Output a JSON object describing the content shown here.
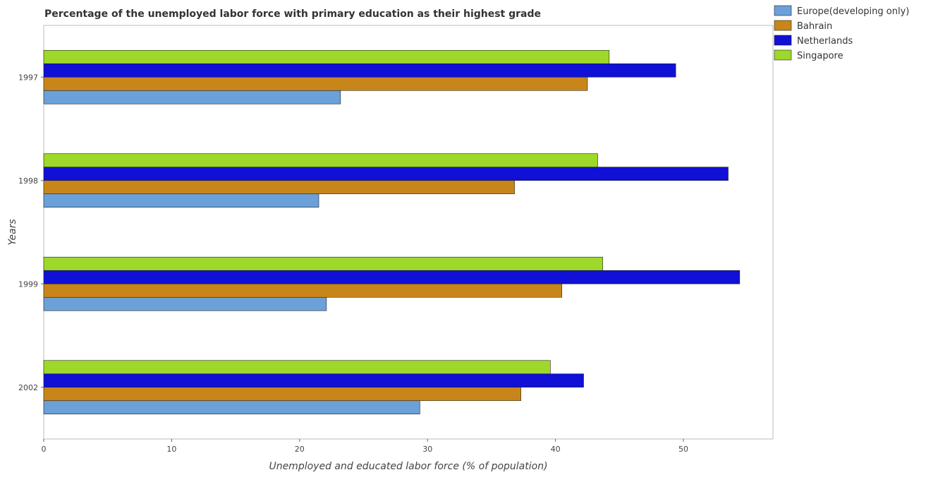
{
  "chart_data": {
    "type": "bar",
    "orientation": "horizontal",
    "title": "Percentage of the unemployed labor force with primary education as their highest grade",
    "xlabel": "Unemployed and educated labor force (% of population)",
    "ylabel": "Years",
    "categories": [
      "1997",
      "1998",
      "1999",
      "2002"
    ],
    "xlim": [
      0,
      57
    ],
    "xticks": [
      "0",
      "10",
      "20",
      "30",
      "40",
      "50"
    ],
    "grid": false,
    "legend_position": "top-right",
    "series": [
      {
        "name": "Europe(developing only)",
        "color": "#6ca0d8",
        "values": [
          23.2,
          21.5,
          22.1,
          29.4
        ]
      },
      {
        "name": "Bahrain",
        "color": "#c8861a",
        "values": [
          42.5,
          36.8,
          40.5,
          37.3
        ]
      },
      {
        "name": "Netherlands",
        "color": "#1010d6",
        "values": [
          49.4,
          53.5,
          54.4,
          42.2
        ]
      },
      {
        "name": "Singapore",
        "color": "#9ed82a",
        "values": [
          44.2,
          43.3,
          43.7,
          39.6
        ]
      }
    ]
  }
}
